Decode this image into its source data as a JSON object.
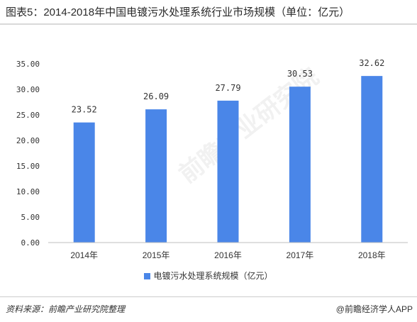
{
  "title": "图表5：2014-2018年中国电镀污水处理系统行业市场规模（单位：亿元）",
  "source": "资料来源：前瞻产业研究院整理",
  "brand": "@前瞻经济学人APP",
  "watermark": "前瞻产业研究院",
  "colors": {
    "bar": "#4a86e8",
    "grid": "#d9d9d9",
    "axis": "#bfbfbf"
  },
  "chart_data": {
    "type": "bar",
    "categories": [
      "2014年",
      "2015年",
      "2016年",
      "2017年",
      "2018年"
    ],
    "series": [
      {
        "name": "电镀污水处理系统规模（亿元）",
        "values": [
          23.52,
          26.09,
          27.79,
          30.53,
          32.62
        ]
      }
    ],
    "data_labels": [
      "23.52",
      "26.09",
      "27.79",
      "30.53",
      "32.62"
    ],
    "yticks": [
      "0.00",
      "5.00",
      "10.00",
      "15.00",
      "20.00",
      "25.00",
      "30.00",
      "35.00"
    ],
    "ylim": [
      0,
      35
    ],
    "grid": false,
    "legend_position": "bottom"
  }
}
